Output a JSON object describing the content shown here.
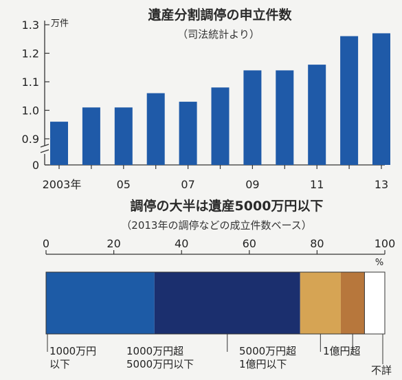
{
  "chart_data": [
    {
      "type": "bar",
      "title": "遺産分割調停の申立件数",
      "subtitle": "（司法統計より）",
      "ylabel": "万件",
      "ylim": [
        0,
        1.3
      ],
      "broken_axis": true,
      "y_ticks": [
        "0",
        "0.9",
        "1.0",
        "1.1",
        "1.2",
        "1.3"
      ],
      "x": [
        2003,
        2004,
        2005,
        2006,
        2007,
        2008,
        2009,
        2010,
        2011,
        2012,
        2013
      ],
      "x_tick_labels": [
        "2003年",
        "",
        "05",
        "",
        "07",
        "",
        "09",
        "",
        "11",
        "",
        "13"
      ],
      "values": [
        0.96,
        1.01,
        1.01,
        1.06,
        1.03,
        1.08,
        1.14,
        1.14,
        1.16,
        1.26,
        1.27
      ],
      "bar_color": "#1f5aa8"
    },
    {
      "type": "bar",
      "orientation": "horizontal-stacked",
      "title": "調停の大半は遺産5000万円以下",
      "subtitle": "（2013年の調停などの成立件数ベース）",
      "unit": "%",
      "xlim": [
        0,
        100
      ],
      "x_ticks": [
        "0",
        "20",
        "40",
        "60",
        "80",
        "100"
      ],
      "segments": [
        {
          "label_lines": [
            "1000万円",
            "以下"
          ],
          "value": 32,
          "color": "#1d5ba6"
        },
        {
          "label_lines": [
            "1000万円超",
            "5000万円以下"
          ],
          "value": 43,
          "color": "#1b2f6e"
        },
        {
          "label_lines": [
            "5000万円超",
            "1億円以下"
          ],
          "value": 12,
          "color": "#d6a454"
        },
        {
          "label_lines": [
            "1億円超"
          ],
          "value": 7,
          "color": "#b7773c"
        },
        {
          "label_lines": [
            "不詳"
          ],
          "value": 6,
          "color": "#ffffff"
        }
      ]
    }
  ]
}
